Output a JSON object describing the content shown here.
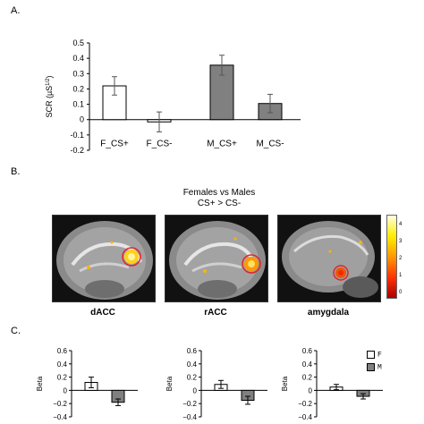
{
  "panels": {
    "a": "A.",
    "b": "B.",
    "c": "C."
  },
  "panel_b": {
    "contrast_line1": "Females vs Males",
    "contrast_line2": "CS+ > CS-",
    "regions": [
      "dACC",
      "rACC",
      "amygdala"
    ],
    "colorbar_ticks": [
      "4",
      "3",
      "2",
      "1",
      "0"
    ]
  },
  "colors": {
    "female": "#ffffff",
    "male": "#808080",
    "outline": "#000000",
    "roi_circle": "#e0242c"
  },
  "chart_data": [
    {
      "type": "bar",
      "id": "A",
      "categories": [
        "F_CS+",
        "F_CS-",
        "M_CS+",
        "M_CS-"
      ],
      "values": [
        0.22,
        -0.015,
        0.355,
        0.105
      ],
      "errors": [
        0.06,
        0.065,
        0.065,
        0.06
      ],
      "fill": [
        "#ffffff",
        "#ffffff",
        "#808080",
        "#808080"
      ],
      "ylabel": "SCR (µS¹ᐟ²)",
      "ylabel_main": "SCR (µS",
      "ylabel_sup": "1/2",
      "ylabel_end": ")",
      "ylim": [
        -0.2,
        0.5
      ],
      "yticks": [
        "0.5",
        "0.4",
        "0.3",
        "0.2",
        "0.1",
        "0",
        "-0.1",
        "-0.2"
      ],
      "ytick_values": [
        0.5,
        0.4,
        0.3,
        0.2,
        0.1,
        0,
        -0.1,
        -0.2
      ],
      "grid": false
    },
    {
      "type": "bar",
      "id": "C1",
      "series": [
        {
          "name": "F",
          "values": [
            0.12
          ]
        },
        {
          "name": "M",
          "values": [
            -0.18
          ]
        }
      ],
      "errors": [
        0.08,
        0.05
      ],
      "ylabel": "Beta",
      "ylim": [
        -0.4,
        0.6
      ],
      "yticks": [
        "0.6",
        "0.4",
        "0.2",
        "0",
        "−0.2",
        "−0.4"
      ],
      "ytick_values": [
        0.6,
        0.4,
        0.2,
        0,
        -0.2,
        -0.4
      ]
    },
    {
      "type": "bar",
      "id": "C2",
      "series": [
        {
          "name": "F",
          "values": [
            0.09
          ]
        },
        {
          "name": "M",
          "values": [
            -0.15
          ]
        }
      ],
      "errors": [
        0.06,
        0.06
      ],
      "ylabel": "Beta",
      "ylim": [
        -0.4,
        0.6
      ],
      "yticks": [
        "0.6",
        "0.4",
        "0.2",
        "0",
        "−0.2",
        "−0.4"
      ],
      "ytick_values": [
        0.6,
        0.4,
        0.2,
        0,
        -0.2,
        -0.4
      ]
    },
    {
      "type": "bar",
      "id": "C3",
      "series": [
        {
          "name": "F",
          "values": [
            0.05
          ]
        },
        {
          "name": "M",
          "values": [
            -0.09
          ]
        }
      ],
      "errors": [
        0.04,
        0.04
      ],
      "ylabel": "Beta",
      "ylim": [
        -0.4,
        0.6
      ],
      "yticks": [
        "0.6",
        "0.4",
        "0.2",
        "0",
        "−0.2",
        "−0.4"
      ],
      "ytick_values": [
        0.6,
        0.4,
        0.2,
        0,
        -0.2,
        -0.4
      ],
      "legend": [
        "F",
        "M"
      ],
      "legend_position": "top-right"
    }
  ]
}
